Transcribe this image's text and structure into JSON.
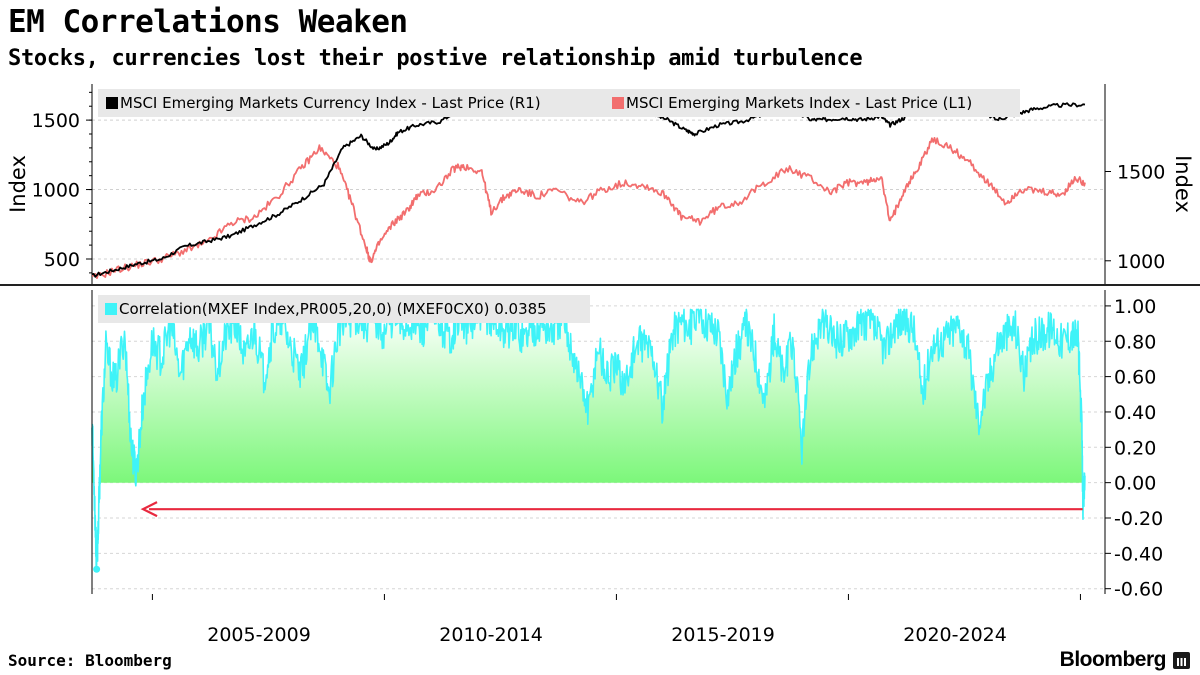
{
  "header": {
    "title": "EM Correlations Weaken",
    "subtitle": "Stocks, currencies lost their postive relationship amid turbulence"
  },
  "footer": {
    "source": "Source: Bloomberg",
    "logo": "Bloomberg"
  },
  "chart_data": [
    {
      "type": "line",
      "panel": "top",
      "title": "",
      "ylabel_left": "Index",
      "ylabel_right": "Index",
      "left_axis": {
        "ylim": [
          320,
          1760
        ],
        "ticks": [
          500,
          1000,
          1500
        ],
        "tick_labels": [
          "500",
          "1000",
          "1500"
        ]
      },
      "right_axis": {
        "ylim": [
          870,
          1990
        ],
        "ticks": [
          1000,
          1500
        ],
        "tick_labels": [
          "1000",
          "1500"
        ]
      },
      "x_range": [
        2003.0,
        2024.4
      ],
      "series": [
        {
          "name": "MSCI Emerging Markets Currency Index - Last Price (R1)",
          "axis": "right",
          "color": "#000000",
          "points": [
            [
              2003.0,
              915
            ],
            [
              2003.5,
              950
            ],
            [
              2004.0,
              985
            ],
            [
              2004.5,
              1010
            ],
            [
              2005.0,
              1080
            ],
            [
              2005.5,
              1110
            ],
            [
              2006.0,
              1140
            ],
            [
              2006.5,
              1200
            ],
            [
              2007.0,
              1260
            ],
            [
              2007.5,
              1340
            ],
            [
              2008.0,
              1430
            ],
            [
              2008.4,
              1630
            ],
            [
              2008.8,
              1700
            ],
            [
              2009.1,
              1620
            ],
            [
              2009.4,
              1660
            ],
            [
              2009.6,
              1720
            ],
            [
              2010.0,
              1760
            ],
            [
              2010.5,
              1780
            ],
            [
              2011.0,
              1860
            ],
            [
              2011.4,
              1880
            ],
            [
              2011.8,
              1840
            ],
            [
              2012.2,
              1860
            ],
            [
              2012.6,
              1880
            ],
            [
              2013.0,
              1820
            ],
            [
              2013.5,
              1830
            ],
            [
              2014.0,
              1835
            ],
            [
              2014.5,
              1850
            ],
            [
              2015.0,
              1830
            ],
            [
              2015.4,
              1790
            ],
            [
              2015.8,
              1730
            ],
            [
              2016.0,
              1710
            ],
            [
              2016.5,
              1760
            ],
            [
              2017.0,
              1780
            ],
            [
              2017.5,
              1820
            ],
            [
              2018.0,
              1850
            ],
            [
              2018.5,
              1790
            ],
            [
              2018.8,
              1790
            ],
            [
              2019.2,
              1800
            ],
            [
              2019.6,
              1790
            ],
            [
              2020.0,
              1810
            ],
            [
              2020.2,
              1760
            ],
            [
              2020.5,
              1800
            ],
            [
              2020.8,
              1860
            ],
            [
              2021.0,
              1890
            ],
            [
              2021.5,
              1880
            ],
            [
              2022.0,
              1860
            ],
            [
              2022.5,
              1790
            ],
            [
              2022.9,
              1820
            ],
            [
              2023.3,
              1850
            ],
            [
              2023.8,
              1870
            ],
            [
              2024.4,
              1875
            ]
          ]
        },
        {
          "name": "MSCI Emerging Markets Index - Last Price (L1)",
          "axis": "left",
          "color": "#f26e6e",
          "points": [
            [
              2003.0,
              360
            ],
            [
              2003.5,
              420
            ],
            [
              2004.0,
              460
            ],
            [
              2004.5,
              500
            ],
            [
              2005.0,
              560
            ],
            [
              2005.5,
              620
            ],
            [
              2006.0,
              760
            ],
            [
              2006.5,
              800
            ],
            [
              2007.0,
              950
            ],
            [
              2007.5,
              1150
            ],
            [
              2007.9,
              1300
            ],
            [
              2008.3,
              1170
            ],
            [
              2008.6,
              900
            ],
            [
              2008.9,
              590
            ],
            [
              2009.0,
              480
            ],
            [
              2009.2,
              620
            ],
            [
              2009.5,
              760
            ],
            [
              2009.8,
              850
            ],
            [
              2010.0,
              950
            ],
            [
              2010.4,
              1000
            ],
            [
              2010.8,
              1150
            ],
            [
              2011.0,
              1170
            ],
            [
              2011.4,
              1130
            ],
            [
              2011.6,
              840
            ],
            [
              2011.9,
              950
            ],
            [
              2012.2,
              1000
            ],
            [
              2012.6,
              950
            ],
            [
              2013.0,
              1000
            ],
            [
              2013.5,
              900
            ],
            [
              2014.0,
              1000
            ],
            [
              2014.5,
              1050
            ],
            [
              2015.0,
              1020
            ],
            [
              2015.4,
              950
            ],
            [
              2015.7,
              800
            ],
            [
              2016.1,
              770
            ],
            [
              2016.5,
              870
            ],
            [
              2017.0,
              920
            ],
            [
              2017.5,
              1050
            ],
            [
              2018.0,
              1150
            ],
            [
              2018.5,
              1080
            ],
            [
              2018.9,
              980
            ],
            [
              2019.3,
              1050
            ],
            [
              2019.7,
              1050
            ],
            [
              2020.0,
              1100
            ],
            [
              2020.2,
              760
            ],
            [
              2020.5,
              1000
            ],
            [
              2020.8,
              1150
            ],
            [
              2021.1,
              1360
            ],
            [
              2021.5,
              1300
            ],
            [
              2021.9,
              1200
            ],
            [
              2022.3,
              1050
            ],
            [
              2022.7,
              900
            ],
            [
              2023.0,
              1000
            ],
            [
              2023.5,
              980
            ],
            [
              2023.9,
              960
            ],
            [
              2024.2,
              1080
            ],
            [
              2024.4,
              1050
            ]
          ]
        }
      ]
    },
    {
      "type": "area",
      "panel": "bottom",
      "title": "",
      "ylim": [
        -0.63,
        1.09
      ],
      "ticks": [
        1.0,
        0.8,
        0.6,
        0.4,
        0.2,
        0.0,
        -0.2,
        -0.4,
        -0.6
      ],
      "tick_labels": [
        "1.00",
        "0.80",
        "0.60",
        "0.40",
        "0.20",
        "0.00",
        "-0.20",
        "-0.40",
        "-0.60"
      ],
      "x_range": [
        2003.0,
        2024.4
      ],
      "x_tick_labels": [
        "2005-2009",
        "2010-2014",
        "2015-2019",
        "2020-2024"
      ],
      "series": [
        {
          "name": "Correlation(MXEF Index,PR005,20,0) (MXEF0CX0) 0.0385",
          "color": "#3ff3f8",
          "fill_top": "#ffffff",
          "fill_bottom": "#7cf77a",
          "last_value": 0.0385,
          "points": [
            [
              2003.0,
              0.35
            ],
            [
              2003.06,
              -0.12
            ],
            [
              2003.1,
              -0.48
            ],
            [
              2003.14,
              -0.2
            ],
            [
              2003.2,
              0.3
            ],
            [
              2003.3,
              0.75
            ],
            [
              2003.5,
              0.55
            ],
            [
              2003.7,
              0.85
            ],
            [
              2003.85,
              0.2
            ],
            [
              2003.95,
              0.05
            ],
            [
              2004.1,
              0.45
            ],
            [
              2004.3,
              0.8
            ],
            [
              2004.5,
              0.7
            ],
            [
              2004.7,
              0.9
            ],
            [
              2004.9,
              0.6
            ],
            [
              2005.1,
              0.85
            ],
            [
              2005.3,
              0.75
            ],
            [
              2005.5,
              0.9
            ],
            [
              2005.7,
              0.65
            ],
            [
              2005.9,
              0.85
            ],
            [
              2006.1,
              0.9
            ],
            [
              2006.3,
              0.7
            ],
            [
              2006.5,
              0.88
            ],
            [
              2006.7,
              0.6
            ],
            [
              2006.9,
              0.85
            ],
            [
              2007.1,
              0.92
            ],
            [
              2007.3,
              0.75
            ],
            [
              2007.5,
              0.6
            ],
            [
              2007.7,
              0.88
            ],
            [
              2007.9,
              0.82
            ],
            [
              2008.1,
              0.5
            ],
            [
              2008.3,
              0.85
            ],
            [
              2008.5,
              0.92
            ],
            [
              2008.7,
              0.95
            ],
            [
              2008.9,
              0.9
            ],
            [
              2009.1,
              0.93
            ],
            [
              2009.3,
              0.85
            ],
            [
              2009.5,
              0.95
            ],
            [
              2009.7,
              0.88
            ],
            [
              2009.9,
              0.92
            ],
            [
              2010.1,
              0.85
            ],
            [
              2010.3,
              0.95
            ],
            [
              2010.5,
              0.9
            ],
            [
              2010.7,
              0.82
            ],
            [
              2010.9,
              0.93
            ],
            [
              2011.1,
              0.88
            ],
            [
              2011.3,
              0.92
            ],
            [
              2011.5,
              0.95
            ],
            [
              2011.7,
              0.9
            ],
            [
              2011.9,
              0.85
            ],
            [
              2012.1,
              0.9
            ],
            [
              2012.3,
              0.82
            ],
            [
              2012.5,
              0.88
            ],
            [
              2012.7,
              0.9
            ],
            [
              2012.9,
              0.85
            ],
            [
              2013.1,
              0.92
            ],
            [
              2013.3,
              0.8
            ],
            [
              2013.5,
              0.6
            ],
            [
              2013.7,
              0.4
            ],
            [
              2013.9,
              0.78
            ],
            [
              2014.1,
              0.6
            ],
            [
              2014.3,
              0.65
            ],
            [
              2014.5,
              0.55
            ],
            [
              2014.7,
              0.75
            ],
            [
              2014.9,
              0.8
            ],
            [
              2015.1,
              0.72
            ],
            [
              2015.3,
              0.4
            ],
            [
              2015.5,
              0.85
            ],
            [
              2015.7,
              0.92
            ],
            [
              2015.9,
              0.88
            ],
            [
              2016.1,
              0.95
            ],
            [
              2016.3,
              0.9
            ],
            [
              2016.5,
              0.85
            ],
            [
              2016.7,
              0.5
            ],
            [
              2016.9,
              0.75
            ],
            [
              2017.1,
              0.88
            ],
            [
              2017.3,
              0.72
            ],
            [
              2017.5,
              0.45
            ],
            [
              2017.7,
              0.85
            ],
            [
              2017.9,
              0.6
            ],
            [
              2018.1,
              0.8
            ],
            [
              2018.3,
              0.2
            ],
            [
              2018.5,
              0.75
            ],
            [
              2018.7,
              0.9
            ],
            [
              2018.9,
              0.85
            ],
            [
              2019.1,
              0.8
            ],
            [
              2019.3,
              0.85
            ],
            [
              2019.5,
              0.88
            ],
            [
              2019.7,
              0.92
            ],
            [
              2019.9,
              0.85
            ],
            [
              2020.1,
              0.75
            ],
            [
              2020.3,
              0.9
            ],
            [
              2020.5,
              0.92
            ],
            [
              2020.7,
              0.88
            ],
            [
              2020.9,
              0.5
            ],
            [
              2021.1,
              0.78
            ],
            [
              2021.3,
              0.8
            ],
            [
              2021.5,
              0.85
            ],
            [
              2021.7,
              0.9
            ],
            [
              2021.9,
              0.72
            ],
            [
              2022.1,
              0.35
            ],
            [
              2022.3,
              0.55
            ],
            [
              2022.5,
              0.78
            ],
            [
              2022.7,
              0.85
            ],
            [
              2022.9,
              0.88
            ],
            [
              2023.1,
              0.6
            ],
            [
              2023.3,
              0.82
            ],
            [
              2023.5,
              0.85
            ],
            [
              2023.7,
              0.88
            ],
            [
              2023.9,
              0.8
            ],
            [
              2024.1,
              0.85
            ],
            [
              2024.25,
              0.82
            ],
            [
              2024.33,
              0.3
            ],
            [
              2024.36,
              -0.15
            ],
            [
              2024.4,
              0.04
            ]
          ]
        }
      ],
      "annotations": [
        {
          "type": "arrow",
          "label": "",
          "color": "#e8293f",
          "y": -0.15,
          "x_from": 2024.35,
          "x_to": 2004.1
        }
      ]
    }
  ]
}
